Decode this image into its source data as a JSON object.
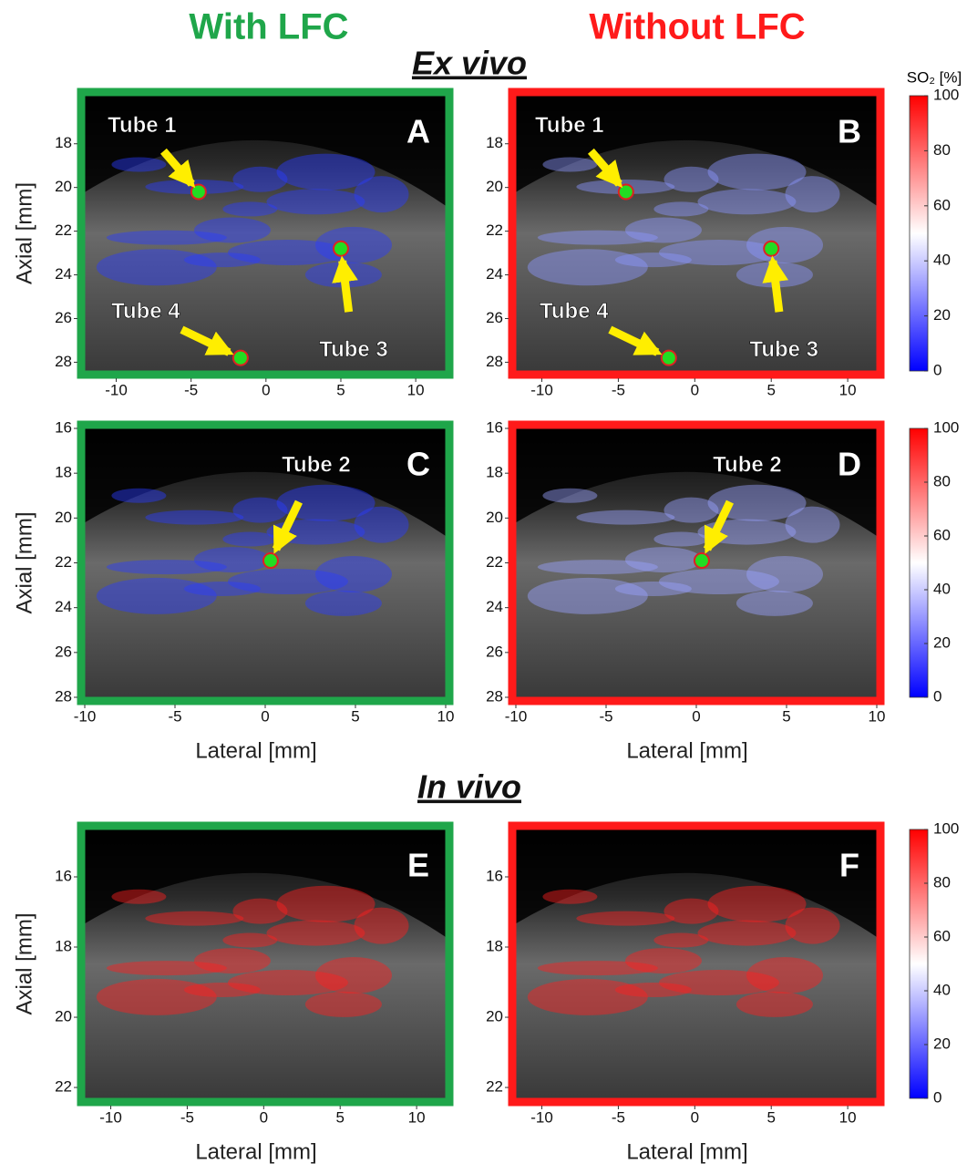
{
  "header": {
    "left": "With LFC",
    "right": "Without LFC",
    "ex_vivo": "Ex vivo",
    "in_vivo": "In vivo"
  },
  "colorbar": {
    "label": "SO₂ [%]",
    "lim": [
      0,
      100
    ],
    "ticks": [
      0,
      20,
      40,
      60,
      80,
      100
    ],
    "colors": [
      "#0000ff",
      "#ffffff",
      "#ff0000"
    ]
  },
  "chart_data": [
    {
      "type": "image",
      "label": "A",
      "frame_color": "#1fa64a",
      "tint": "#2a3cff",
      "xlim": [
        -12.1,
        12.0
      ],
      "ylim": [
        15.8,
        28.4
      ],
      "xticks": [
        -10,
        -5,
        0,
        5,
        10
      ],
      "yticks": [
        18,
        20,
        22,
        24,
        26,
        28
      ],
      "ylabel": "Axial [mm]",
      "annotations": [
        {
          "text": "Tube 1",
          "x": -4.5,
          "y": 20.2
        },
        {
          "text": "Tube 3",
          "x": 5,
          "y": 22.8
        },
        {
          "text": "Tube 4",
          "x": -1.7,
          "y": 27.8
        }
      ]
    },
    {
      "type": "image",
      "label": "B",
      "frame_color": "#ff1a1a",
      "tint": "#8c96ff",
      "xlim": [
        -11.7,
        11.9
      ],
      "ylim": [
        15.8,
        28.4
      ],
      "xticks": [
        -10,
        -5,
        0,
        5,
        10
      ],
      "yticks": [
        18,
        20,
        22,
        24,
        26,
        28
      ],
      "annotations": [
        {
          "text": "Tube 1",
          "x": -4.5,
          "y": 20.2
        },
        {
          "text": "Tube 3",
          "x": 5,
          "y": 22.8
        },
        {
          "text": "Tube 4",
          "x": -1.7,
          "y": 27.8
        }
      ]
    },
    {
      "type": "image",
      "label": "C",
      "frame_color": "#1fa64a",
      "tint": "#2a3cff",
      "xlim": [
        -10,
        10
      ],
      "ylim": [
        16,
        28
      ],
      "xticks": [
        -10,
        -5,
        0,
        5,
        10
      ],
      "yticks": [
        16,
        18,
        20,
        22,
        24,
        26,
        28
      ],
      "ylabel": "Axial [mm]",
      "xlabel": "Lateral [mm]",
      "annotations": [
        {
          "text": "Tube 2",
          "x": 0.3,
          "y": 21.9
        }
      ]
    },
    {
      "type": "image",
      "label": "D",
      "frame_color": "#ff1a1a",
      "tint": "#9aa2ff",
      "xlim": [
        -10,
        10
      ],
      "ylim": [
        16,
        28
      ],
      "xticks": [
        -10,
        -5,
        0,
        5,
        10
      ],
      "yticks": [
        16,
        18,
        20,
        22,
        24,
        26,
        28
      ],
      "xlabel": "Lateral [mm]",
      "annotations": [
        {
          "text": "Tube 2",
          "x": 0.3,
          "y": 21.9
        }
      ]
    },
    {
      "type": "image",
      "label": "E",
      "frame_color": "#1fa64a",
      "tint": "#ff2020",
      "xlim": [
        -11.7,
        11.9
      ],
      "ylim": [
        14.65,
        22.31
      ],
      "xticks": [
        -10,
        -5,
        0,
        5,
        10
      ],
      "yticks": [
        16,
        18,
        20,
        22
      ],
      "ylabel": "Axial [mm]",
      "xlabel": "Lateral [mm]"
    },
    {
      "type": "image",
      "label": "F",
      "frame_color": "#ff1a1a",
      "tint": "#ff2020",
      "xlim": [
        -11.7,
        11.9
      ],
      "ylim": [
        14.65,
        22.31
      ],
      "xticks": [
        -10,
        -5,
        0,
        5,
        10
      ],
      "yticks": [
        16,
        18,
        20,
        22
      ],
      "xlabel": "Lateral [mm]"
    }
  ]
}
